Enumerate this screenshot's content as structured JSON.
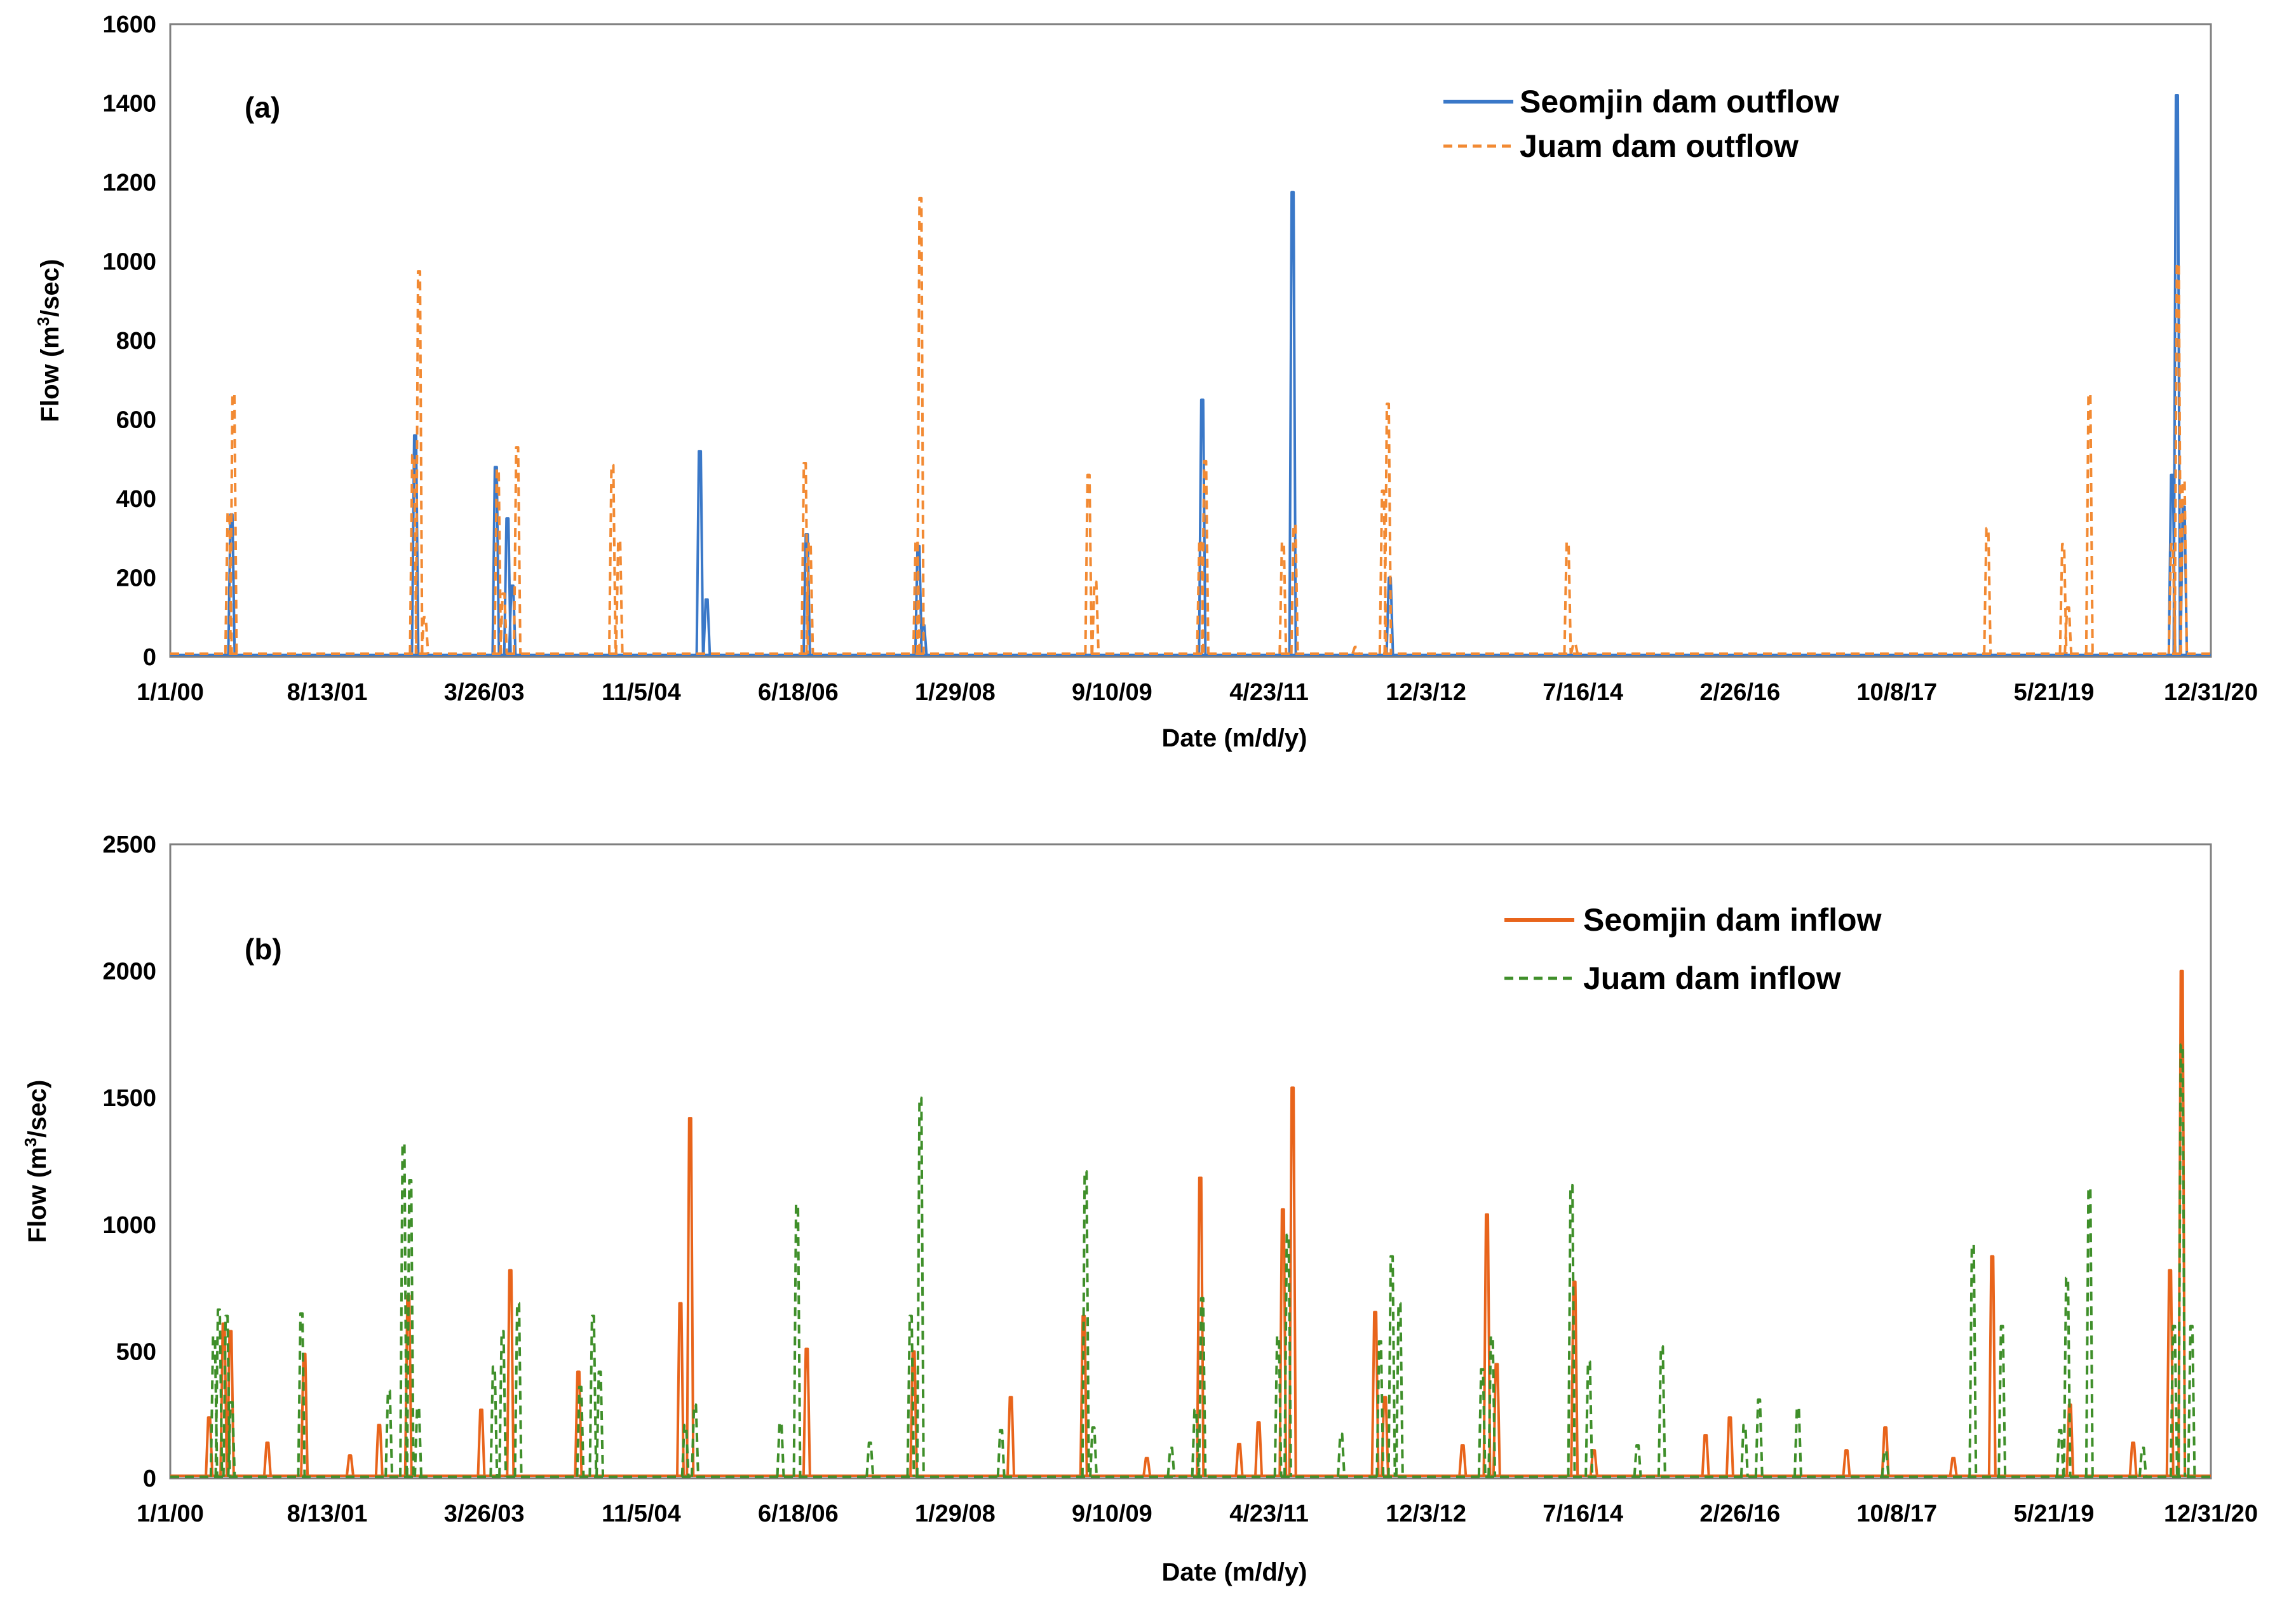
{
  "colors": {
    "seomjin_outflow": "#3a78c8",
    "juam_outflow": "#f28a33",
    "seomjin_inflow": "#e8641b",
    "juam_inflow": "#3f8f2a"
  },
  "chart_data": [
    {
      "type": "line",
      "panel_label": "(a)",
      "xlabel": "Date (m/d/y)",
      "ylabel_prefix": "Flow (m",
      "ylabel_sup": "3",
      "ylabel_suffix": "/sec)",
      "x_range_years": [
        0,
        21
      ],
      "x_ticks": [
        {
          "label": "1/1/00",
          "year": 0.0
        },
        {
          "label": "8/13/01",
          "year": 1.615
        },
        {
          "label": "3/26/03",
          "year": 3.231
        },
        {
          "label": "11/5/04",
          "year": 4.847
        },
        {
          "label": "6/18/06",
          "year": 6.462
        },
        {
          "label": "1/29/08",
          "year": 8.077
        },
        {
          "label": "9/10/09",
          "year": 9.692
        },
        {
          "label": "4/23/11",
          "year": 11.308
        },
        {
          "label": "12/3/12",
          "year": 12.923
        },
        {
          "label": "7/16/14",
          "year": 14.538
        },
        {
          "label": "2/26/16",
          "year": 16.154
        },
        {
          "label": "10/8/17",
          "year": 17.769
        },
        {
          "label": "5/21/19",
          "year": 19.385
        },
        {
          "label": "12/31/20",
          "year": 21.0
        }
      ],
      "y_range": [
        0,
        1600
      ],
      "y_ticks": [
        0,
        200,
        400,
        600,
        800,
        1000,
        1200,
        1400,
        1600
      ],
      "legend_position": "top-right",
      "series": [
        {
          "name": "Seomjin dam outflow",
          "color_key": "seomjin_outflow",
          "style": "solid",
          "baseline": 5,
          "peaks": [
            {
              "t": 0.63,
              "v": 360
            },
            {
              "t": 2.52,
              "v": 560
            },
            {
              "t": 3.35,
              "v": 480
            },
            {
              "t": 3.47,
              "v": 350
            },
            {
              "t": 3.52,
              "v": 180
            },
            {
              "t": 5.45,
              "v": 520
            },
            {
              "t": 5.52,
              "v": 145
            },
            {
              "t": 6.55,
              "v": 310
            },
            {
              "t": 7.7,
              "v": 280
            },
            {
              "t": 7.75,
              "v": 80
            },
            {
              "t": 10.62,
              "v": 650
            },
            {
              "t": 11.55,
              "v": 1175
            },
            {
              "t": 12.55,
              "v": 200
            },
            {
              "t": 20.6,
              "v": 460
            },
            {
              "t": 20.65,
              "v": 1420
            },
            {
              "t": 20.72,
              "v": 380
            }
          ]
        },
        {
          "name": "Juam dam outflow",
          "color_key": "juam_outflow",
          "style": "dashed",
          "baseline": 8,
          "peaks": [
            {
              "t": 0.6,
              "v": 365
            },
            {
              "t": 0.65,
              "v": 665
            },
            {
              "t": 2.5,
              "v": 510
            },
            {
              "t": 2.56,
              "v": 975
            },
            {
              "t": 2.62,
              "v": 100
            },
            {
              "t": 3.37,
              "v": 475
            },
            {
              "t": 3.43,
              "v": 160
            },
            {
              "t": 3.57,
              "v": 530
            },
            {
              "t": 4.55,
              "v": 485
            },
            {
              "t": 4.62,
              "v": 295
            },
            {
              "t": 6.53,
              "v": 490
            },
            {
              "t": 6.58,
              "v": 290
            },
            {
              "t": 7.68,
              "v": 295
            },
            {
              "t": 7.72,
              "v": 1160
            },
            {
              "t": 9.45,
              "v": 460
            },
            {
              "t": 9.52,
              "v": 190
            },
            {
              "t": 10.6,
              "v": 295
            },
            {
              "t": 10.65,
              "v": 495
            },
            {
              "t": 11.45,
              "v": 290
            },
            {
              "t": 11.57,
              "v": 335
            },
            {
              "t": 12.2,
              "v": 25
            },
            {
              "t": 12.48,
              "v": 420
            },
            {
              "t": 12.53,
              "v": 640
            },
            {
              "t": 14.38,
              "v": 290
            },
            {
              "t": 14.45,
              "v": 35
            },
            {
              "t": 18.7,
              "v": 325
            },
            {
              "t": 19.48,
              "v": 285
            },
            {
              "t": 19.53,
              "v": 125
            },
            {
              "t": 19.75,
              "v": 665
            },
            {
              "t": 20.6,
              "v": 285
            },
            {
              "t": 20.66,
              "v": 995
            },
            {
              "t": 20.72,
              "v": 445
            }
          ]
        }
      ]
    },
    {
      "type": "line",
      "panel_label": "(b)",
      "xlabel": "Date (m/d/y)",
      "ylabel_prefix": "Flow (m",
      "ylabel_sup": "3",
      "ylabel_suffix": "/sec)",
      "x_range_years": [
        0,
        21
      ],
      "x_ticks": [
        {
          "label": "1/1/00",
          "year": 0.0
        },
        {
          "label": "8/13/01",
          "year": 1.615
        },
        {
          "label": "3/26/03",
          "year": 3.231
        },
        {
          "label": "11/5/04",
          "year": 4.847
        },
        {
          "label": "6/18/06",
          "year": 6.462
        },
        {
          "label": "1/29/08",
          "year": 8.077
        },
        {
          "label": "9/10/09",
          "year": 9.692
        },
        {
          "label": "4/23/11",
          "year": 11.308
        },
        {
          "label": "12/3/12",
          "year": 12.923
        },
        {
          "label": "7/16/14",
          "year": 14.538
        },
        {
          "label": "2/26/16",
          "year": 16.154
        },
        {
          "label": "10/8/17",
          "year": 17.769
        },
        {
          "label": "5/21/19",
          "year": 19.385
        },
        {
          "label": "12/31/20",
          "year": 21.0
        }
      ],
      "y_range": [
        0,
        2500
      ],
      "y_ticks": [
        0,
        500,
        1000,
        1500,
        2000,
        2500
      ],
      "legend_position": "top-right",
      "series": [
        {
          "name": "Seomjin dam inflow",
          "color_key": "seomjin_inflow",
          "style": "solid",
          "baseline": 10,
          "peaks": [
            {
              "t": 0.4,
              "v": 240
            },
            {
              "t": 0.55,
              "v": 610
            },
            {
              "t": 0.62,
              "v": 580
            },
            {
              "t": 1.0,
              "v": 140
            },
            {
              "t": 1.38,
              "v": 490
            },
            {
              "t": 1.85,
              "v": 90
            },
            {
              "t": 2.15,
              "v": 210
            },
            {
              "t": 2.45,
              "v": 720
            },
            {
              "t": 3.2,
              "v": 270
            },
            {
              "t": 3.5,
              "v": 820
            },
            {
              "t": 4.2,
              "v": 420
            },
            {
              "t": 5.25,
              "v": 690
            },
            {
              "t": 5.35,
              "v": 1420
            },
            {
              "t": 6.55,
              "v": 510
            },
            {
              "t": 7.65,
              "v": 500
            },
            {
              "t": 8.65,
              "v": 320
            },
            {
              "t": 9.4,
              "v": 640
            },
            {
              "t": 10.05,
              "v": 80
            },
            {
              "t": 10.6,
              "v": 1185
            },
            {
              "t": 11.0,
              "v": 135
            },
            {
              "t": 11.2,
              "v": 220
            },
            {
              "t": 11.45,
              "v": 1060
            },
            {
              "t": 11.55,
              "v": 1540
            },
            {
              "t": 12.4,
              "v": 655
            },
            {
              "t": 12.5,
              "v": 320
            },
            {
              "t": 13.3,
              "v": 130
            },
            {
              "t": 13.55,
              "v": 1040
            },
            {
              "t": 13.65,
              "v": 450
            },
            {
              "t": 14.45,
              "v": 775
            },
            {
              "t": 14.65,
              "v": 110
            },
            {
              "t": 15.8,
              "v": 170
            },
            {
              "t": 16.05,
              "v": 240
            },
            {
              "t": 17.25,
              "v": 110
            },
            {
              "t": 17.65,
              "v": 200
            },
            {
              "t": 18.35,
              "v": 80
            },
            {
              "t": 18.75,
              "v": 875
            },
            {
              "t": 19.55,
              "v": 290
            },
            {
              "t": 20.2,
              "v": 140
            },
            {
              "t": 20.58,
              "v": 820
            },
            {
              "t": 20.7,
              "v": 2000
            }
          ]
        },
        {
          "name": "Juam dam inflow",
          "color_key": "juam_inflow",
          "style": "dashed",
          "baseline": 6,
          "peaks": [
            {
              "t": 0.45,
              "v": 560
            },
            {
              "t": 0.5,
              "v": 665
            },
            {
              "t": 0.58,
              "v": 640
            },
            {
              "t": 0.63,
              "v": 300
            },
            {
              "t": 1.35,
              "v": 650
            },
            {
              "t": 2.25,
              "v": 345
            },
            {
              "t": 2.4,
              "v": 1320
            },
            {
              "t": 2.47,
              "v": 1175
            },
            {
              "t": 2.55,
              "v": 280
            },
            {
              "t": 3.33,
              "v": 440
            },
            {
              "t": 3.42,
              "v": 580
            },
            {
              "t": 3.58,
              "v": 690
            },
            {
              "t": 4.22,
              "v": 360
            },
            {
              "t": 4.35,
              "v": 640
            },
            {
              "t": 4.42,
              "v": 420
            },
            {
              "t": 5.3,
              "v": 210
            },
            {
              "t": 5.4,
              "v": 290
            },
            {
              "t": 6.28,
              "v": 220
            },
            {
              "t": 6.45,
              "v": 1080
            },
            {
              "t": 7.2,
              "v": 140
            },
            {
              "t": 7.62,
              "v": 640
            },
            {
              "t": 7.72,
              "v": 1500
            },
            {
              "t": 8.55,
              "v": 190
            },
            {
              "t": 9.42,
              "v": 1210
            },
            {
              "t": 9.5,
              "v": 200
            },
            {
              "t": 10.3,
              "v": 120
            },
            {
              "t": 10.55,
              "v": 270
            },
            {
              "t": 10.62,
              "v": 710
            },
            {
              "t": 11.4,
              "v": 560
            },
            {
              "t": 11.5,
              "v": 960
            },
            {
              "t": 12.05,
              "v": 175
            },
            {
              "t": 12.45,
              "v": 540
            },
            {
              "t": 12.57,
              "v": 875
            },
            {
              "t": 12.65,
              "v": 690
            },
            {
              "t": 13.5,
              "v": 430
            },
            {
              "t": 13.6,
              "v": 560
            },
            {
              "t": 14.42,
              "v": 1155
            },
            {
              "t": 14.6,
              "v": 460
            },
            {
              "t": 15.1,
              "v": 130
            },
            {
              "t": 15.35,
              "v": 520
            },
            {
              "t": 16.2,
              "v": 210
            },
            {
              "t": 16.35,
              "v": 310
            },
            {
              "t": 16.75,
              "v": 280
            },
            {
              "t": 17.65,
              "v": 110
            },
            {
              "t": 18.55,
              "v": 920
            },
            {
              "t": 18.85,
              "v": 600
            },
            {
              "t": 19.45,
              "v": 190
            },
            {
              "t": 19.52,
              "v": 790
            },
            {
              "t": 19.75,
              "v": 1145
            },
            {
              "t": 20.3,
              "v": 120
            },
            {
              "t": 20.62,
              "v": 600
            },
            {
              "t": 20.7,
              "v": 1710
            },
            {
              "t": 20.8,
              "v": 600
            }
          ]
        }
      ]
    }
  ]
}
